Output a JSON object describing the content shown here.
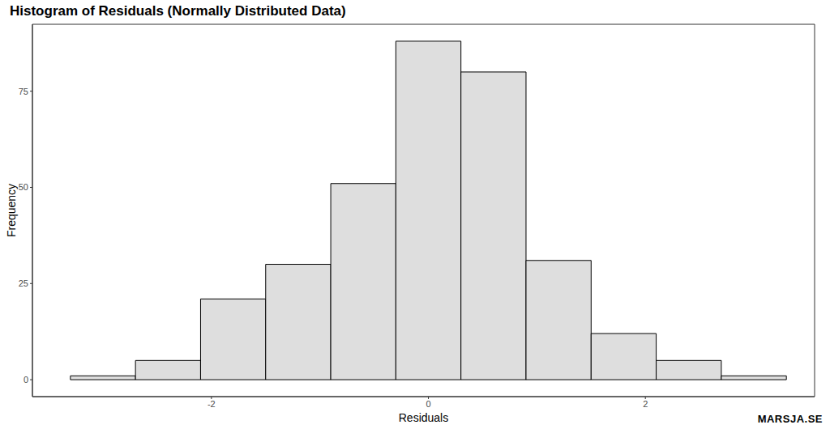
{
  "chart_data": {
    "type": "histogram",
    "title": "Histogram of Residuals (Normally Distributed Data)",
    "x_label": "Residuals",
    "y_label": "Frequency",
    "bins": [
      -3.3,
      -2.7,
      -2.1,
      -1.5,
      -0.9,
      -0.3,
      0.3,
      0.9,
      1.5,
      2.1,
      2.7,
      3.3
    ],
    "values": [
      1,
      5,
      21,
      30,
      51,
      88,
      80,
      31,
      12,
      5,
      1
    ],
    "color": "#dedede",
    "xlim": [
      -3.65,
      3.56
    ],
    "ylim": [
      -4.4,
      92.4
    ],
    "xticks": [
      -2,
      0,
      2
    ],
    "yticks": [
      0,
      25,
      50,
      75
    ],
    "grid": false,
    "annotations": [
      "MARSJA.SE"
    ]
  }
}
